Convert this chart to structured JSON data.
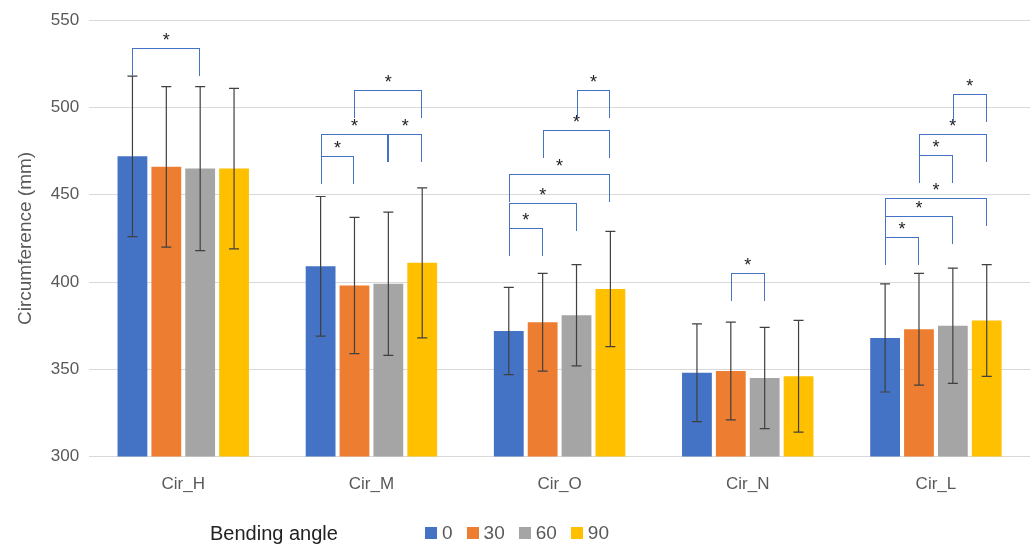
{
  "chart_data": {
    "type": "bar",
    "ylabel": "Circumference (mm)",
    "legend_title": "Bending angle",
    "legend": "bottom",
    "grid": "y",
    "categories": [
      "Cir_H",
      "Cir_M",
      "Cir_O",
      "Cir_N",
      "Cir_L"
    ],
    "ylim": [
      300,
      550
    ],
    "yticks": [
      300,
      350,
      400,
      450,
      500,
      550
    ],
    "series": [
      {
        "name": "0",
        "color": "#4472c4",
        "values": [
          472,
          409,
          372,
          348,
          368
        ],
        "errors": [
          46,
          40,
          25,
          28,
          31
        ]
      },
      {
        "name": "30",
        "color": "#ed7d31",
        "values": [
          466,
          398,
          377,
          349,
          373
        ],
        "errors": [
          46,
          39,
          28,
          28,
          32
        ]
      },
      {
        "name": "60",
        "color": "#a5a5a5",
        "values": [
          465,
          399,
          381,
          345,
          375
        ],
        "errors": [
          47,
          41,
          29,
          29,
          33
        ]
      },
      {
        "name": "90",
        "color": "#ffc000",
        "values": [
          465,
          411,
          396,
          346,
          378
        ],
        "errors": [
          46,
          43,
          33,
          32,
          32
        ]
      }
    ],
    "annotations": [
      "*",
      "*",
      "*",
      "*",
      "*",
      "*",
      "*",
      "*",
      "*",
      "*",
      "*",
      "*",
      "*",
      "*",
      "*",
      "*",
      "*"
    ]
  }
}
